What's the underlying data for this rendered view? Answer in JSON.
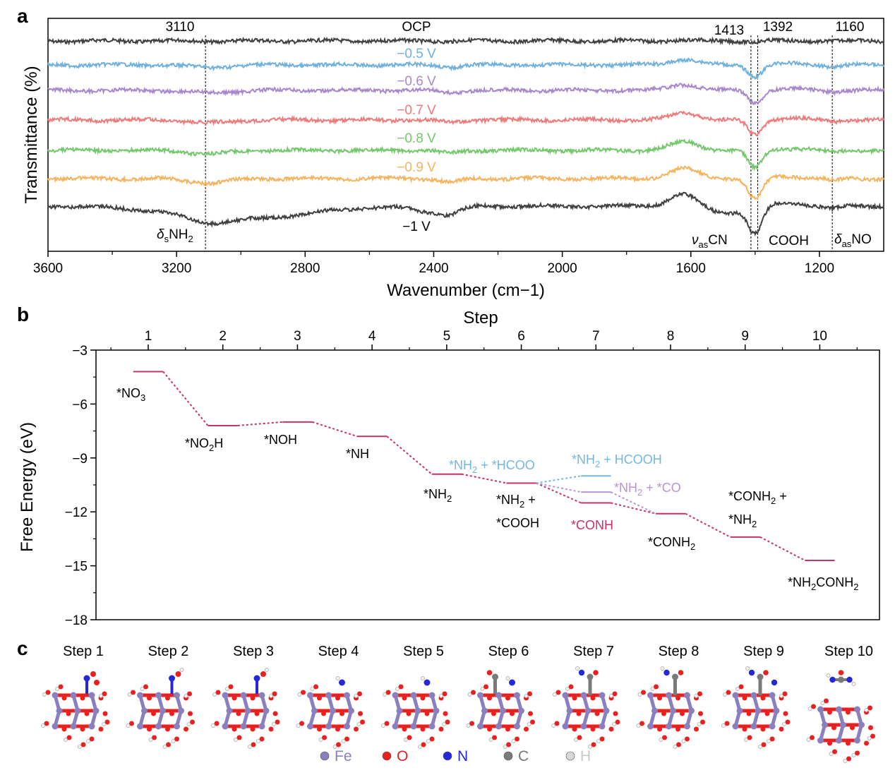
{
  "panels": {
    "a": "a",
    "b": "b",
    "c": "c"
  },
  "chart_data": [
    {
      "type": "line",
      "xlabel": "Wavenumber (cm−1)",
      "ylabel": "Transmittance (%)",
      "xlim": [
        3600,
        1000
      ],
      "xticks": [
        3600,
        3200,
        2800,
        2400,
        2000,
        1600,
        1200
      ],
      "grid": false,
      "series": [
        {
          "name": "OCP",
          "color": "#404040",
          "feature_scale": 0.05
        },
        {
          "name": "−0.5 V",
          "color": "#6fb1dc",
          "feature_scale": 0.55
        },
        {
          "name": "−0.6 V",
          "color": "#a888cc",
          "feature_scale": 0.6
        },
        {
          "name": "−0.7 V",
          "color": "#ee7a7a",
          "feature_scale": 0.7
        },
        {
          "name": "−0.8 V",
          "color": "#72c86a",
          "feature_scale": 0.85
        },
        {
          "name": "−0.9 V",
          "color": "#f6b35e",
          "feature_scale": 1.0
        },
        {
          "name": "−1 V",
          "color": "#404040",
          "feature_scale": 1.25
        }
      ],
      "reference_lines": [
        3110,
        1413,
        1392,
        1160
      ],
      "annotations": {
        "peak_3110": "3110",
        "peak_1413": "1413",
        "peak_1392": "1392",
        "peak_1160": "1160",
        "nh2_base": "δ",
        "nh2_sub": "s",
        "nh2_main": "NH",
        "nh2_sub2": "2",
        "cn_base": "ν",
        "cn_sub": "as",
        "cn_main": "CN",
        "cooh": "COOH",
        "no_base": "δ",
        "no_sub": "as",
        "no_main": "NO"
      }
    },
    {
      "type": "line",
      "xlabel": "Step",
      "ylabel": "Free Energy (eV)",
      "xlim": [
        0.3,
        10.8
      ],
      "ylim": [
        -18,
        -3
      ],
      "xticks": [
        1,
        2,
        3,
        4,
        5,
        6,
        7,
        8,
        9,
        10
      ],
      "yticks": [
        -3,
        -6,
        -9,
        -12,
        -15,
        -18
      ],
      "grid": false,
      "main_path": {
        "color": "#c8306a",
        "levels": [
          {
            "step": 1,
            "energy": -4.2
          },
          {
            "step": 2,
            "energy": -7.2
          },
          {
            "step": 3,
            "energy": -7.0
          },
          {
            "step": 4,
            "energy": -7.8
          },
          {
            "step": 5,
            "energy": -9.9
          },
          {
            "step": 6,
            "energy": -10.4
          },
          {
            "step": 7,
            "energy": -11.5
          },
          {
            "step": 8,
            "energy": -12.1
          },
          {
            "step": 9,
            "energy": -13.4
          },
          {
            "step": 10,
            "energy": -14.7
          }
        ]
      },
      "branches": [
        {
          "name": "*NH2 + HCOOH",
          "color": "#74b6e0",
          "step": 7,
          "energy": -10.0
        },
        {
          "name": "*NH2 + *CO",
          "color": "#b894d4",
          "step": 7,
          "energy": -10.9
        }
      ],
      "labels": [
        {
          "pre": "*NO",
          "sub": "3",
          "post": ""
        },
        {
          "pre": "*NO",
          "sub": "2",
          "post": "H"
        },
        {
          "pre": "*NOH",
          "sub": "",
          "post": ""
        },
        {
          "pre": "*NH",
          "sub": "",
          "post": ""
        },
        {
          "pre": "*NH",
          "sub": "2",
          "post": ""
        },
        {
          "pre": "*NH",
          "sub": "2",
          "post": " +"
        },
        {
          "pre": "*COOH",
          "sub": "",
          "post": ""
        },
        {
          "pre": "*NH",
          "sub": "2",
          "post": " + *HCOO"
        },
        {
          "pre": "*NH",
          "sub": "2",
          "post": " + HCOOH"
        },
        {
          "pre": "*NH",
          "sub": "2",
          "post": " + *CO"
        },
        {
          "pre": "*CONH",
          "sub": "",
          "post": ""
        },
        {
          "pre": "*CONH",
          "sub": "2",
          "post": ""
        },
        {
          "pre": "*CONH",
          "sub": "2",
          "post": " +"
        },
        {
          "pre": "*NH",
          "sub": "2",
          "post": ""
        },
        {
          "pre": "*NH",
          "sub": "2",
          "post": "CONH"
        },
        {
          "pre": "",
          "sub": "2",
          "post": ""
        }
      ]
    }
  ],
  "structures": {
    "steps": [
      "Step 1",
      "Step 2",
      "Step 3",
      "Step 4",
      "Step 5",
      "Step 6",
      "Step 7",
      "Step 8",
      "Step 9",
      "Step 10"
    ],
    "legend": [
      {
        "label": "Fe",
        "color": "#8a80c0"
      },
      {
        "label": "O",
        "color": "#e8211f"
      },
      {
        "label": "N",
        "color": "#2428d8"
      },
      {
        "label": "C",
        "color": "#7a7a7a"
      },
      {
        "label": "H",
        "color": "#d8d8d8"
      }
    ]
  }
}
